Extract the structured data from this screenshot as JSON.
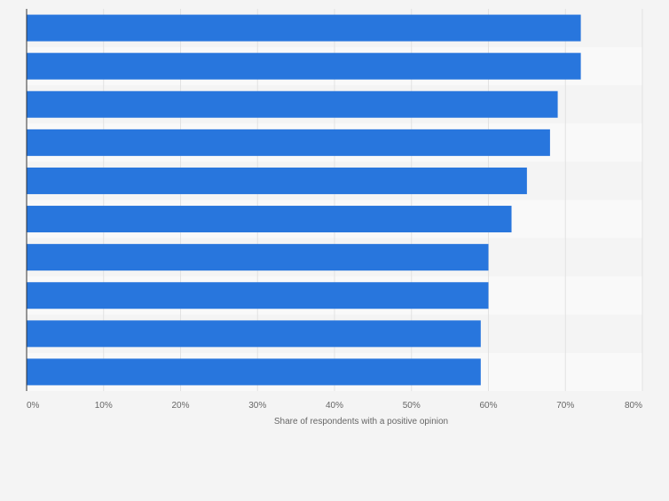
{
  "chart_data": {
    "type": "bar",
    "orientation": "horizontal",
    "categories": [
      "",
      "",
      "",
      "",
      "",
      "",
      "",
      "",
      "",
      ""
    ],
    "values": [
      72,
      72,
      69,
      68,
      65,
      63,
      60,
      60,
      59,
      59
    ],
    "title": "",
    "xlabel": "Share of respondents with a positive opinion",
    "ylabel": "",
    "xlim": [
      0,
      80
    ],
    "x_ticks": [
      "0%",
      "10%",
      "20%",
      "30%",
      "40%",
      "50%",
      "60%",
      "70%",
      "80%"
    ],
    "grid": true,
    "bar_color": "#2876dd",
    "band_colors": [
      "#f4f4f4",
      "#f9f9f9"
    ]
  }
}
